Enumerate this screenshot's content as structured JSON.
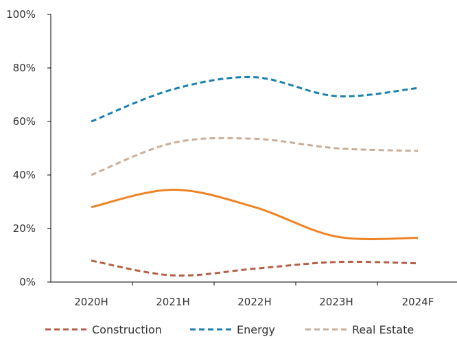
{
  "chart_data": {
    "type": "line",
    "title": "",
    "xlabel": "",
    "ylabel": "",
    "categories": [
      "2020H",
      "2021H",
      "2022H",
      "2023H",
      "2024F"
    ],
    "ylim": [
      0,
      100
    ],
    "yticks": [
      "0%",
      "20%",
      "40%",
      "60%",
      "80%",
      "100%"
    ],
    "grid": false,
    "legend_position": "bottom",
    "series": [
      {
        "name": "Construction",
        "values": [
          8,
          2.5,
          5,
          7.5,
          7
        ],
        "color": "#b65f46",
        "style": "dashed",
        "in_legend": true
      },
      {
        "name": "Energy",
        "values": [
          60,
          72,
          76.5,
          69.5,
          72.5
        ],
        "color": "#1a7fb0",
        "style": "dashed",
        "in_legend": true
      },
      {
        "name": "Real Estate",
        "values": [
          40,
          52,
          53.5,
          50,
          49
        ],
        "color": "#c9ad98",
        "style": "dashed",
        "in_legend": true
      },
      {
        "name": "",
        "values": [
          28,
          34.5,
          28,
          17,
          16.5
        ],
        "color": "#ee8325",
        "style": "solid",
        "in_legend": false
      }
    ]
  }
}
